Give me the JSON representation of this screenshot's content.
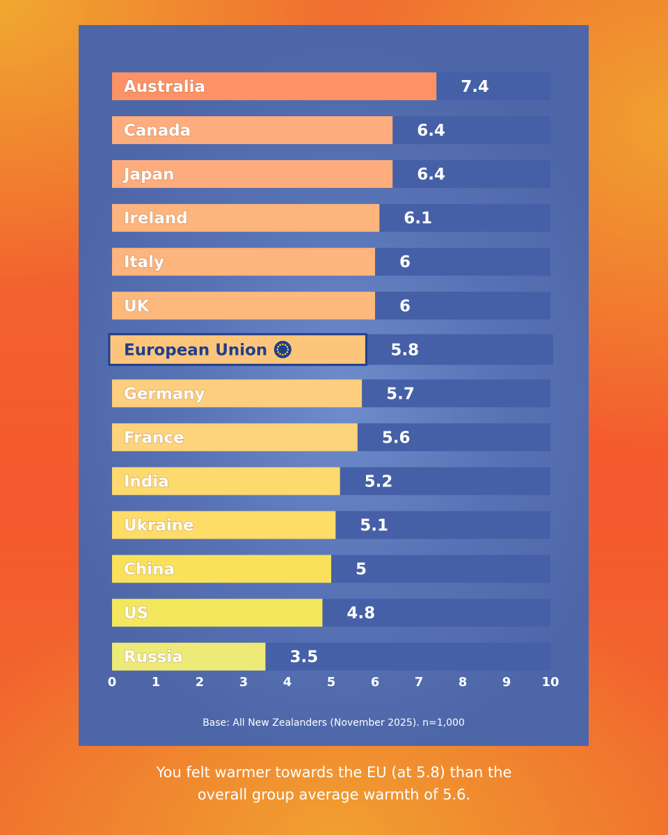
{
  "chart_data": {
    "type": "bar",
    "orientation": "horizontal",
    "categories": [
      "Australia",
      "Canada",
      "Japan",
      "Ireland",
      "Italy",
      "UK",
      "European Union",
      "Germany",
      "France",
      "India",
      "Ukraine",
      "China",
      "US",
      "Russia"
    ],
    "values": [
      7.4,
      6.4,
      6.4,
      6.1,
      6,
      6,
      5.8,
      5.7,
      5.6,
      5.2,
      5.1,
      5,
      4.8,
      3.5
    ],
    "value_labels": [
      "7.4",
      "6.4",
      "6.4",
      "6.1",
      "6",
      "6",
      "5.8",
      "5.7",
      "5.6",
      "5.2",
      "5.1",
      "5",
      "4.8",
      "3.5"
    ],
    "xlim": [
      0,
      10
    ],
    "x_ticks": [
      0,
      1,
      2,
      3,
      4,
      5,
      6,
      7,
      8,
      9,
      10
    ],
    "x_tick_labels": [
      "0",
      "1",
      "2",
      "3",
      "4",
      "5",
      "6",
      "7",
      "8",
      "9",
      "10"
    ],
    "highlighted_category": "European Union",
    "grid": false,
    "title": "",
    "xlabel": "",
    "ylabel": "",
    "colors": {
      "bar_colors": [
        "#fc9265",
        "#fdad7d",
        "#fdad7d",
        "#fdb47d",
        "#fdb47d",
        "#fdb87c",
        "#fdc57b",
        "#fdce7d",
        "#fdd37c",
        "#fdda6d",
        "#fddc68",
        "#fae15c",
        "#f3e75e",
        "#eeea78"
      ],
      "track": "#4560a6",
      "value_text": "#ffffff",
      "category_text": "#ffffff",
      "highlight_text": "#1f3e8c",
      "highlight_border": "#1f3e8c",
      "eu_flag_circle": "#1f3e8c",
      "eu_flag_stars": "#f7d23c"
    },
    "highlight_icon": "eu-flag-icon"
  },
  "footnote": "Base: All New Zealanders (November 2025). n=1,000",
  "caption": {
    "line1": "You felt warmer towards the EU (at 5.8) than the",
    "line2": "overall group average warmth of 5.6."
  }
}
